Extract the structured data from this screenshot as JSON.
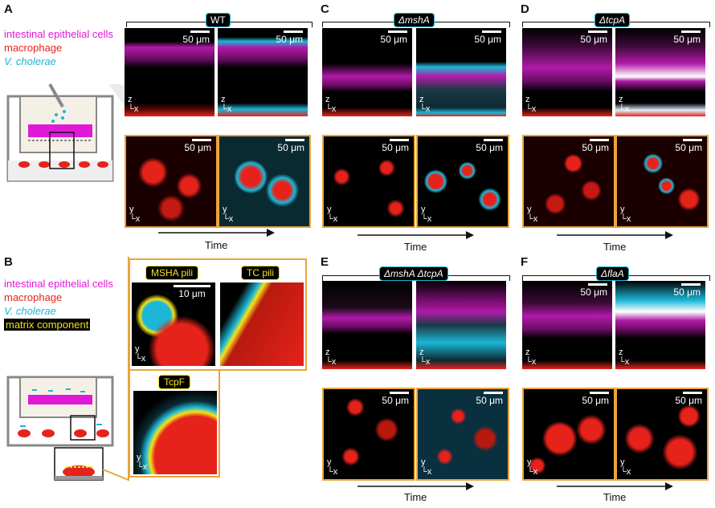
{
  "panels": {
    "A": "A",
    "B": "B",
    "C": "C",
    "D": "D",
    "E": "E",
    "F": "F"
  },
  "legend_a": [
    "intestinal epithelial cells",
    "macrophage",
    "V. cholerae"
  ],
  "legend_b": [
    "intestinal epithelial cells",
    "macrophage",
    "V. cholerae",
    "matrix component"
  ],
  "strains": {
    "A": "WT",
    "C": "ΔmshA",
    "D": "ΔtcpA",
    "E": "ΔmshA ΔtcpA",
    "F": "ΔflaA"
  },
  "scale_50": "50 μm",
  "scale_10": "10 μm",
  "axis_xz": "z\n└x",
  "axis_xy": "y\n└x",
  "time": "Time",
  "zoom_labels": [
    "MSHA pili",
    "TC pili",
    "TcpF"
  ],
  "colors": {
    "magenta": "#e018d8",
    "red": "#e5231b",
    "cyan": "#1cb6d6",
    "yellow": "#f4e21a",
    "orange": "#e9a43c"
  }
}
